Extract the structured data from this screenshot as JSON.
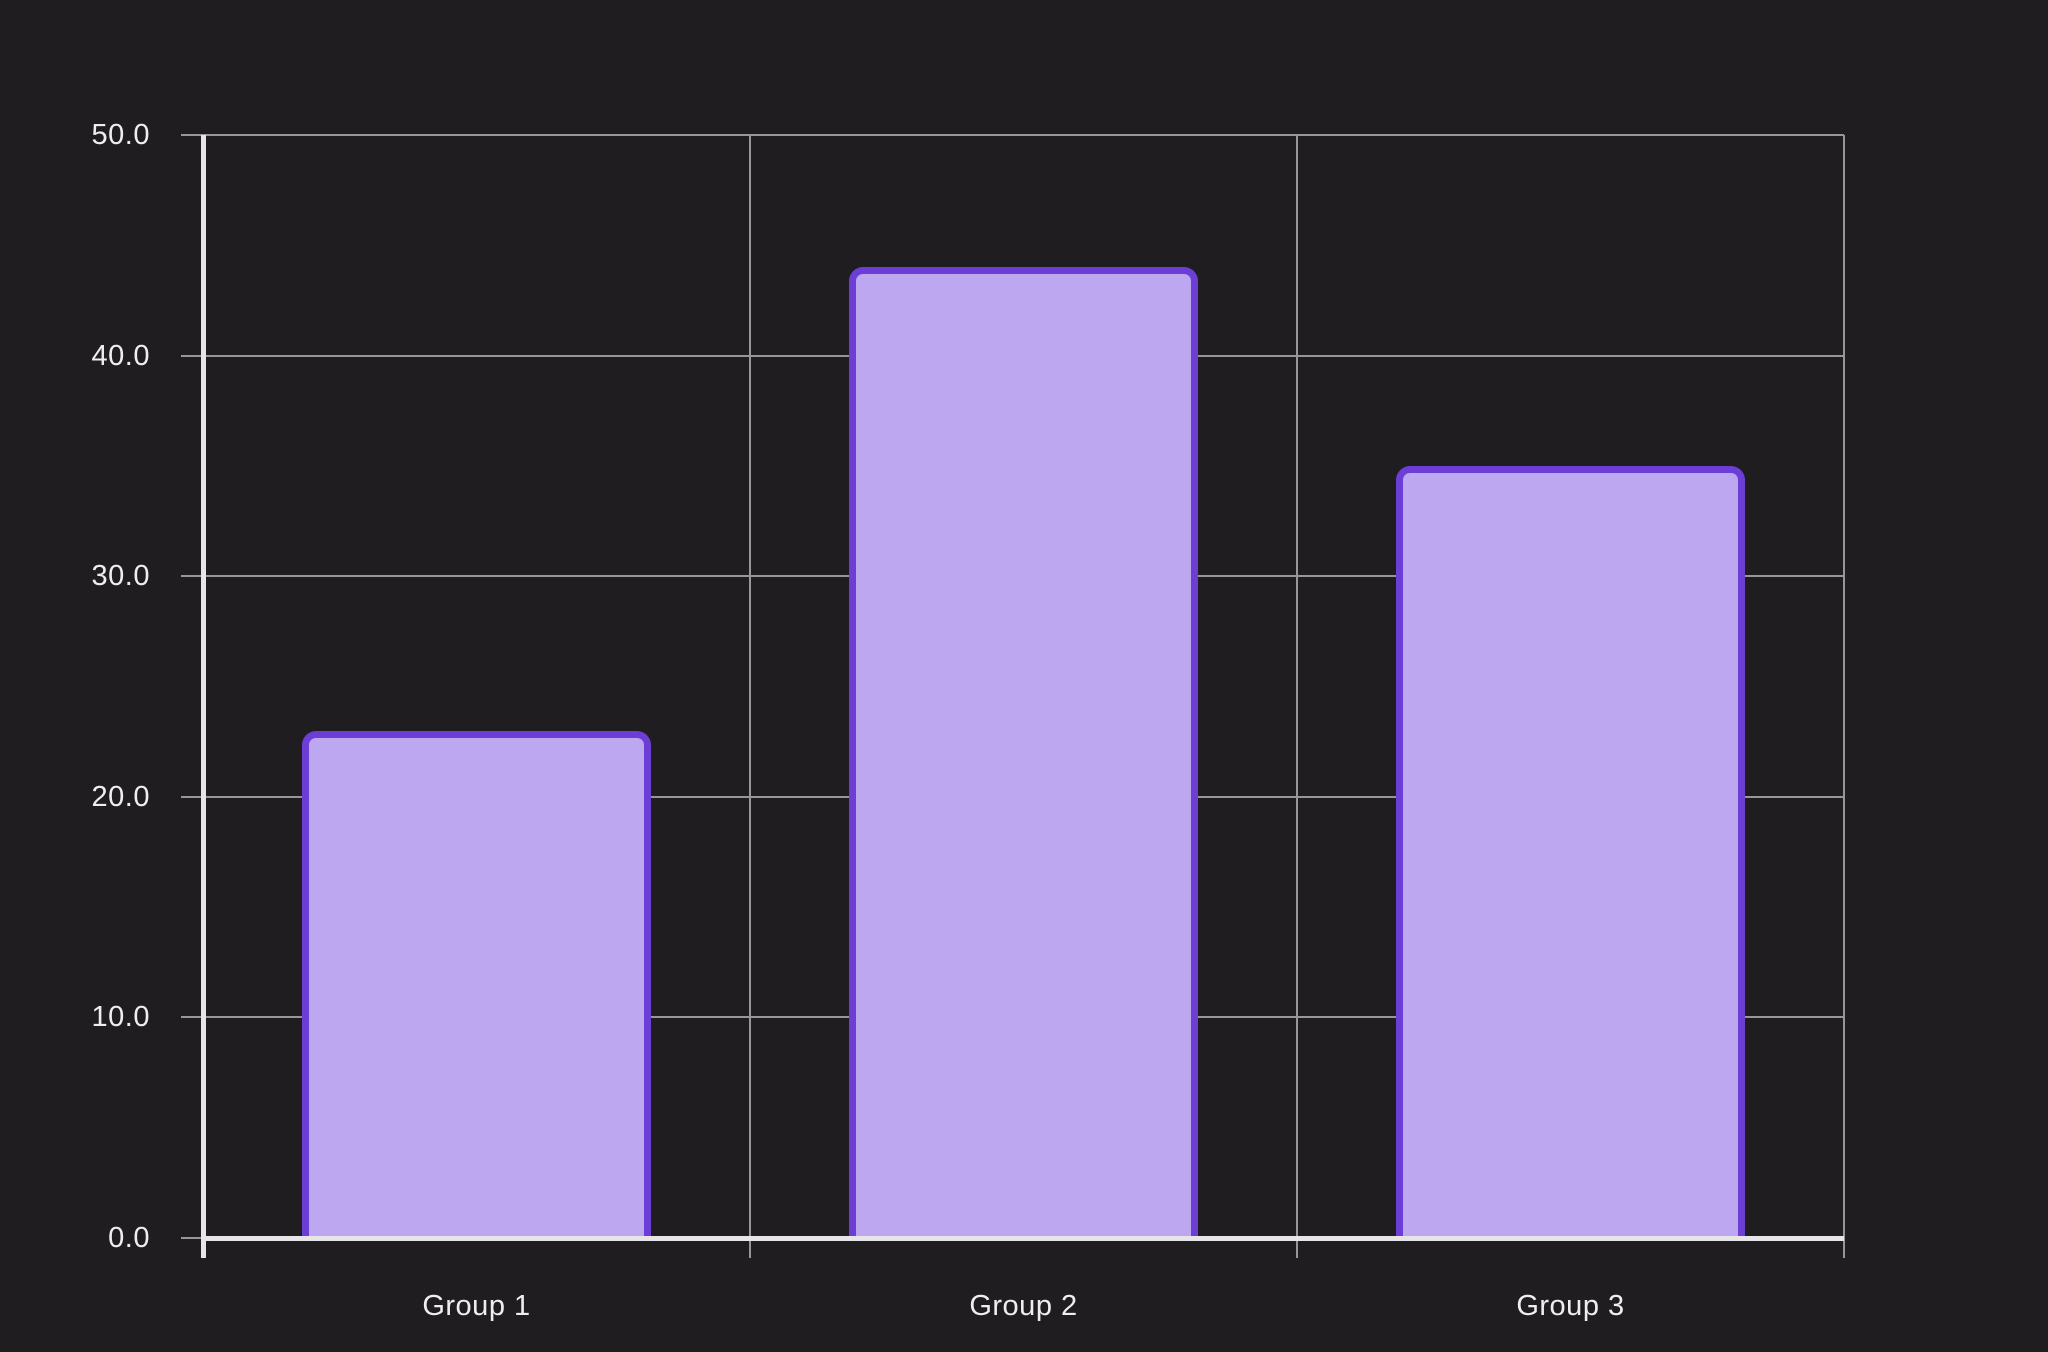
{
  "chart_data": {
    "type": "bar",
    "categories": [
      "Group 1",
      "Group 2",
      "Group 3"
    ],
    "values": [
      23,
      44,
      35
    ],
    "title": "",
    "xlabel": "",
    "ylabel": "",
    "ylim": [
      0,
      50
    ],
    "ytick_interval": 10,
    "ytick_labels": [
      "0.0",
      "10.0",
      "20.0",
      "30.0",
      "40.0",
      "50.0"
    ],
    "grid": true,
    "legend_position": "none",
    "colors": {
      "background": "#1f1d20",
      "bar_fill": "#bda7f0",
      "bar_border": "#6d3ed6",
      "axis_line": "#e8e5e8",
      "gridline": "#98959b",
      "tick_mark": "#98959b",
      "label_text": "#efedef"
    }
  }
}
